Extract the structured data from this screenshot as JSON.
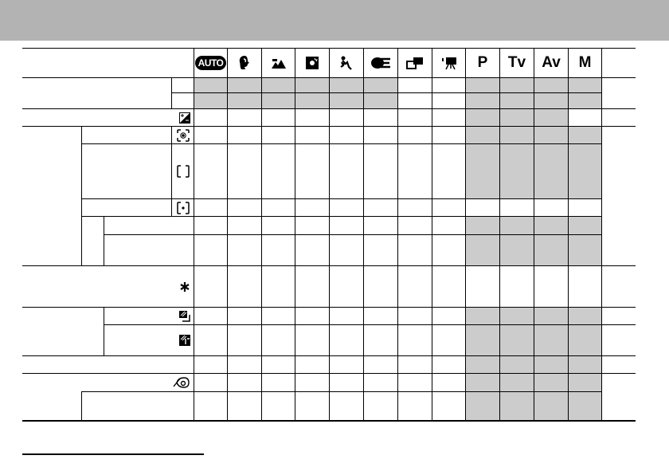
{
  "colors": {
    "banner": "#b3b3b3",
    "unavailable_shade": "#cccccc",
    "rule": "#000000"
  },
  "header": {
    "modes": [
      {
        "icon": "auto-icon",
        "label": "AUTO"
      },
      {
        "icon": "portrait-icon",
        "label": ""
      },
      {
        "icon": "landscape-icon",
        "label": ""
      },
      {
        "icon": "night-scene-icon",
        "label": ""
      },
      {
        "icon": "fast-shutter-icon",
        "label": ""
      },
      {
        "icon": "slow-shutter-icon",
        "label": ""
      },
      {
        "icon": "stitch-assist-icon",
        "label": ""
      },
      {
        "icon": "movie-icon",
        "label": ""
      },
      {
        "icon": "",
        "label": "P"
      },
      {
        "icon": "",
        "label": "Tv"
      },
      {
        "icon": "",
        "label": "Av"
      },
      {
        "icon": "",
        "label": "M"
      }
    ]
  },
  "row_icons": {
    "exposure_compensation": "exposure-compensation-icon",
    "evaluative_metering": "evaluative-metering-icon",
    "center_weighted_metering": "center-weighted-metering-icon",
    "spot_metering": "spot-metering-icon",
    "ae_lock": "ae-lock-asterisk-icon",
    "auto_bracketing_1": "bracketing-icon",
    "auto_bracketing_2": "focus-bracketing-icon",
    "self_timer": "self-timer-icon"
  },
  "availability_shading": [
    [
      true,
      true,
      true,
      true,
      true,
      true,
      false,
      false,
      true,
      true,
      true,
      true
    ],
    [
      true,
      true,
      true,
      true,
      true,
      true,
      false,
      false,
      true,
      true,
      true,
      true
    ],
    [
      false,
      false,
      false,
      false,
      false,
      false,
      false,
      false,
      true,
      true,
      true,
      false
    ],
    [
      false,
      false,
      false,
      false,
      false,
      false,
      false,
      false,
      true,
      true,
      true,
      true
    ],
    [
      false,
      false,
      false,
      false,
      false,
      false,
      false,
      false,
      true,
      true,
      true,
      true
    ],
    [
      false,
      false,
      false,
      false,
      false,
      false,
      false,
      false,
      false,
      false,
      false,
      false
    ],
    [
      false,
      false,
      false,
      false,
      false,
      false,
      false,
      false,
      true,
      true,
      true,
      true
    ],
    [
      false,
      false,
      false,
      false,
      false,
      false,
      false,
      false,
      true,
      true,
      true,
      true
    ],
    [
      false,
      false,
      false,
      false,
      false,
      false,
      false,
      false,
      false,
      false,
      false,
      false
    ],
    [
      false,
      false,
      false,
      false,
      false,
      false,
      false,
      false,
      true,
      true,
      true,
      true
    ],
    [
      false,
      false,
      false,
      false,
      false,
      false,
      false,
      false,
      true,
      true,
      true,
      true
    ],
    [
      false,
      false,
      false,
      false,
      false,
      false,
      false,
      false,
      true,
      true,
      true,
      true
    ],
    [
      false,
      false,
      false,
      false,
      false,
      false,
      false,
      false,
      true,
      true,
      true,
      true
    ],
    [
      false,
      false,
      false,
      false,
      false,
      false,
      false,
      false,
      true,
      true,
      true,
      true
    ]
  ]
}
